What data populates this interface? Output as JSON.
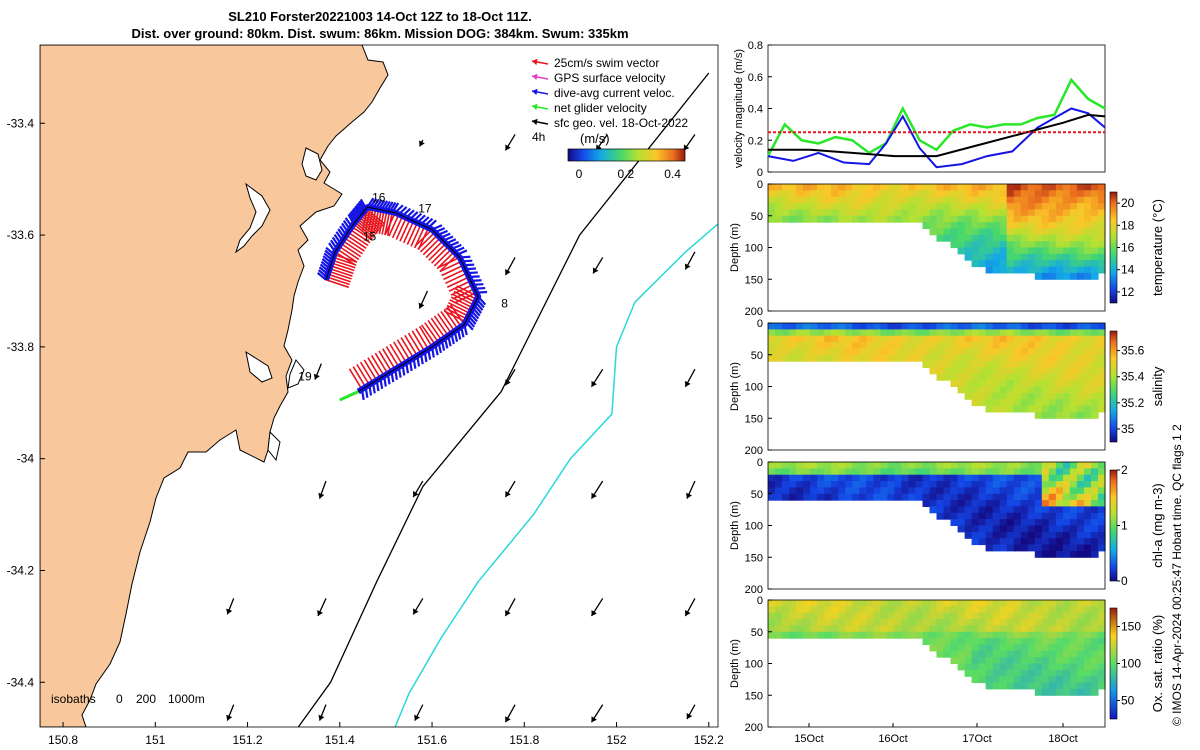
{
  "title": {
    "line1": "SL210 Forster20221003 14-Oct 12Z to 18-Oct 11Z.",
    "line2": "Dist. over ground: 80km. Dist. swum: 86km. Mission DOG: 384km. Swum: 335km"
  },
  "footer_note": "© IMOS 14-Apr-2024 00:25:47 Hobart time. QC flags 1  2",
  "colors": {
    "land": "#f8c89c",
    "swim": "#e8141e",
    "gps": "#e43cc8",
    "current": "#1414e6",
    "net": "#28e628",
    "geo": "#000000",
    "isobath200": "#000000",
    "isobath1000": "#2ad8d8"
  },
  "chart_data": [
    {
      "type": "map",
      "legend": [
        {
          "label": "25cm/s swim vector",
          "color": "#e8141e"
        },
        {
          "label": "GPS surface velocity",
          "color": "#e43cc8"
        },
        {
          "label": "dive-avg current veloc.",
          "color": "#1414e6"
        },
        {
          "label": "net glider velocity",
          "color": "#28e628"
        },
        {
          "label": "sfc geo. vel. 18-Oct-2022",
          "color": "#000000"
        }
      ],
      "legend_extra": "4h",
      "colorbar": {
        "label": "(m/s)",
        "ticks": [
          "0",
          "0.2",
          "0.4"
        ],
        "range": [
          0,
          0.5
        ]
      },
      "x_ticks": [
        "150.8",
        "151",
        "151.2",
        "151.4",
        "151.6",
        "151.8",
        "152",
        "152.2"
      ],
      "y_ticks": [
        "-33.4",
        "-33.6",
        "-33.8",
        "-34",
        "-34.2",
        "-34.4"
      ],
      "xlim": [
        150.75,
        152.22
      ],
      "ylim": [
        -34.48,
        -33.26
      ],
      "day_labels": [
        {
          "text": "15",
          "lon": 151.45,
          "lat": -33.61
        },
        {
          "text": "16",
          "lon": 151.47,
          "lat": -33.54
        },
        {
          "text": "17",
          "lon": 151.57,
          "lat": -33.56
        },
        {
          "text": "8",
          "lon": 151.75,
          "lat": -33.73
        },
        {
          "text": "19",
          "lon": 151.31,
          "lat": -33.86
        }
      ],
      "isobaths": {
        "label": "isobaths",
        "values": [
          "0",
          "200",
          "1000m"
        ]
      },
      "track": [
        [
          151.37,
          -33.68
        ],
        [
          151.39,
          -33.63
        ],
        [
          151.43,
          -33.58
        ],
        [
          151.46,
          -33.55
        ],
        [
          151.52,
          -33.56
        ],
        [
          151.6,
          -33.59
        ],
        [
          151.66,
          -33.64
        ],
        [
          151.7,
          -33.71
        ],
        [
          151.67,
          -33.76
        ],
        [
          151.6,
          -33.8
        ],
        [
          151.52,
          -33.84
        ],
        [
          151.44,
          -33.88
        ]
      ],
      "isobath_200": [
        [
          152.2,
          -33.31
        ],
        [
          151.92,
          -33.6
        ],
        [
          151.75,
          -33.88
        ],
        [
          151.58,
          -34.05
        ],
        [
          151.48,
          -34.22
        ],
        [
          151.38,
          -34.4
        ],
        [
          151.31,
          -34.48
        ]
      ],
      "isobath_1000": [
        [
          152.22,
          -33.58
        ],
        [
          152.15,
          -33.63
        ],
        [
          152.04,
          -33.72
        ],
        [
          152.0,
          -33.8
        ],
        [
          151.99,
          -33.92
        ],
        [
          151.9,
          -34.0
        ],
        [
          151.82,
          -34.1
        ],
        [
          151.7,
          -34.22
        ],
        [
          151.62,
          -34.32
        ],
        [
          151.55,
          -34.42
        ],
        [
          151.52,
          -34.48
        ]
      ],
      "geo_arrows": [
        {
          "lon": 151.36,
          "lat": -33.83,
          "u": -0.04,
          "v": -0.1
        },
        {
          "lon": 151.59,
          "lat": -33.7,
          "u": -0.05,
          "v": -0.11
        },
        {
          "lon": 151.78,
          "lat": -33.42,
          "u": -0.06,
          "v": -0.1
        },
        {
          "lon": 151.98,
          "lat": -33.42,
          "u": -0.07,
          "v": -0.1
        },
        {
          "lon": 152.17,
          "lat": -33.42,
          "u": -0.07,
          "v": -0.1
        },
        {
          "lon": 151.58,
          "lat": -33.43,
          "u": -0.02,
          "v": -0.04
        },
        {
          "lon": 151.78,
          "lat": -33.64,
          "u": -0.06,
          "v": -0.11
        },
        {
          "lon": 151.97,
          "lat": -33.64,
          "u": -0.06,
          "v": -0.1
        },
        {
          "lon": 152.17,
          "lat": -33.63,
          "u": -0.06,
          "v": -0.11
        },
        {
          "lon": 151.78,
          "lat": -33.84,
          "u": -0.06,
          "v": -0.1
        },
        {
          "lon": 151.97,
          "lat": -33.84,
          "u": -0.07,
          "v": -0.11
        },
        {
          "lon": 152.17,
          "lat": -33.84,
          "u": -0.06,
          "v": -0.11
        },
        {
          "lon": 151.37,
          "lat": -34.04,
          "u": -0.04,
          "v": -0.11
        },
        {
          "lon": 151.58,
          "lat": -34.04,
          "u": -0.06,
          "v": -0.1
        },
        {
          "lon": 151.78,
          "lat": -34.04,
          "u": -0.06,
          "v": -0.1
        },
        {
          "lon": 151.97,
          "lat": -34.04,
          "u": -0.07,
          "v": -0.11
        },
        {
          "lon": 152.17,
          "lat": -34.04,
          "u": -0.05,
          "v": -0.11
        },
        {
          "lon": 151.17,
          "lat": -34.25,
          "u": -0.04,
          "v": -0.1
        },
        {
          "lon": 151.37,
          "lat": -34.25,
          "u": -0.05,
          "v": -0.11
        },
        {
          "lon": 151.58,
          "lat": -34.25,
          "u": -0.06,
          "v": -0.1
        },
        {
          "lon": 151.78,
          "lat": -34.25,
          "u": -0.06,
          "v": -0.11
        },
        {
          "lon": 151.97,
          "lat": -34.25,
          "u": -0.07,
          "v": -0.11
        },
        {
          "lon": 152.17,
          "lat": -34.25,
          "u": -0.06,
          "v": -0.11
        },
        {
          "lon": 151.17,
          "lat": -34.44,
          "u": -0.04,
          "v": -0.1
        },
        {
          "lon": 151.37,
          "lat": -34.44,
          "u": -0.04,
          "v": -0.1
        },
        {
          "lon": 151.58,
          "lat": -34.44,
          "u": -0.05,
          "v": -0.1
        },
        {
          "lon": 151.78,
          "lat": -34.44,
          "u": -0.06,
          "v": -0.11
        },
        {
          "lon": 151.97,
          "lat": -34.44,
          "u": -0.07,
          "v": -0.11
        },
        {
          "lon": 152.17,
          "lat": -34.44,
          "u": -0.05,
          "v": -0.09
        }
      ]
    },
    {
      "type": "line",
      "ylabel": "velocity magnitude (m/s)",
      "ylim": [
        0,
        0.8
      ],
      "y_ticks": [
        "0",
        "0.2",
        "0.4",
        "0.6",
        "0.8"
      ],
      "xlim": [
        14.5,
        18.5
      ],
      "series": [
        {
          "name": "net glider velocity",
          "color": "#28e628",
          "x": [
            14.5,
            14.7,
            14.9,
            15.1,
            15.3,
            15.5,
            15.7,
            15.9,
            16.1,
            16.3,
            16.5,
            16.7,
            16.9,
            17.1,
            17.3,
            17.5,
            17.7,
            17.9,
            18.1,
            18.3,
            18.5
          ],
          "y": [
            0.1,
            0.3,
            0.2,
            0.18,
            0.22,
            0.2,
            0.12,
            0.18,
            0.4,
            0.2,
            0.14,
            0.26,
            0.3,
            0.28,
            0.3,
            0.3,
            0.34,
            0.36,
            0.58,
            0.46,
            0.4
          ]
        },
        {
          "name": "dive-avg current veloc.",
          "color": "#1414e6",
          "x": [
            14.5,
            14.8,
            15.1,
            15.4,
            15.7,
            15.9,
            16.1,
            16.3,
            16.5,
            16.8,
            17.1,
            17.4,
            17.7,
            17.9,
            18.1,
            18.3,
            18.5
          ],
          "y": [
            0.1,
            0.07,
            0.12,
            0.06,
            0.05,
            0.18,
            0.35,
            0.15,
            0.03,
            0.05,
            0.1,
            0.13,
            0.28,
            0.34,
            0.4,
            0.37,
            0.28
          ]
        },
        {
          "name": "sfc geo. vel.",
          "color": "#000000",
          "x": [
            14.5,
            15.0,
            15.5,
            16.0,
            16.5,
            17.0,
            17.5,
            18.0,
            18.3,
            18.5
          ],
          "y": [
            0.14,
            0.14,
            0.12,
            0.1,
            0.1,
            0.17,
            0.24,
            0.31,
            0.36,
            0.35
          ]
        },
        {
          "name": "25cm/s swim vector",
          "color": "#e8141e",
          "x": [
            14.5,
            18.5
          ],
          "y": [
            0.25,
            0.25
          ]
        }
      ]
    },
    {
      "type": "heatmap",
      "variable": "temperature",
      "ylabel": "Depth (m)",
      "clabel": "temperature (°C)",
      "y_ticks": [
        "0",
        "50",
        "100",
        "150",
        "200"
      ],
      "c_ticks": [
        "12",
        "14",
        "16",
        "18",
        "20"
      ],
      "crange": [
        11,
        21
      ]
    },
    {
      "type": "heatmap",
      "variable": "salinity",
      "ylabel": "Depth (m)",
      "clabel": "salinity",
      "y_ticks": [
        "0",
        "50",
        "100",
        "150",
        "200"
      ],
      "c_ticks": [
        "35",
        "35.2",
        "35.4",
        "35.6"
      ],
      "crange": [
        34.9,
        35.75
      ]
    },
    {
      "type": "heatmap",
      "variable": "chl-a",
      "ylabel": "Depth (m)",
      "clabel": "chl-a (mg m-3)",
      "y_ticks": [
        "0",
        "50",
        "100",
        "150",
        "200"
      ],
      "c_ticks": [
        "0",
        "1",
        "2"
      ],
      "crange": [
        0,
        2
      ]
    },
    {
      "type": "heatmap",
      "variable": "oxygen saturation",
      "ylabel": "Depth (m)",
      "clabel": "Ox. sat. ratio (%)",
      "y_ticks": [
        "0",
        "50",
        "100",
        "150",
        "200"
      ],
      "c_ticks": [
        "50",
        "100",
        "150"
      ],
      "crange": [
        25,
        175
      ],
      "x_ticks": [
        "15Oct",
        "16Oct",
        "17Oct",
        "18Oct"
      ]
    }
  ]
}
